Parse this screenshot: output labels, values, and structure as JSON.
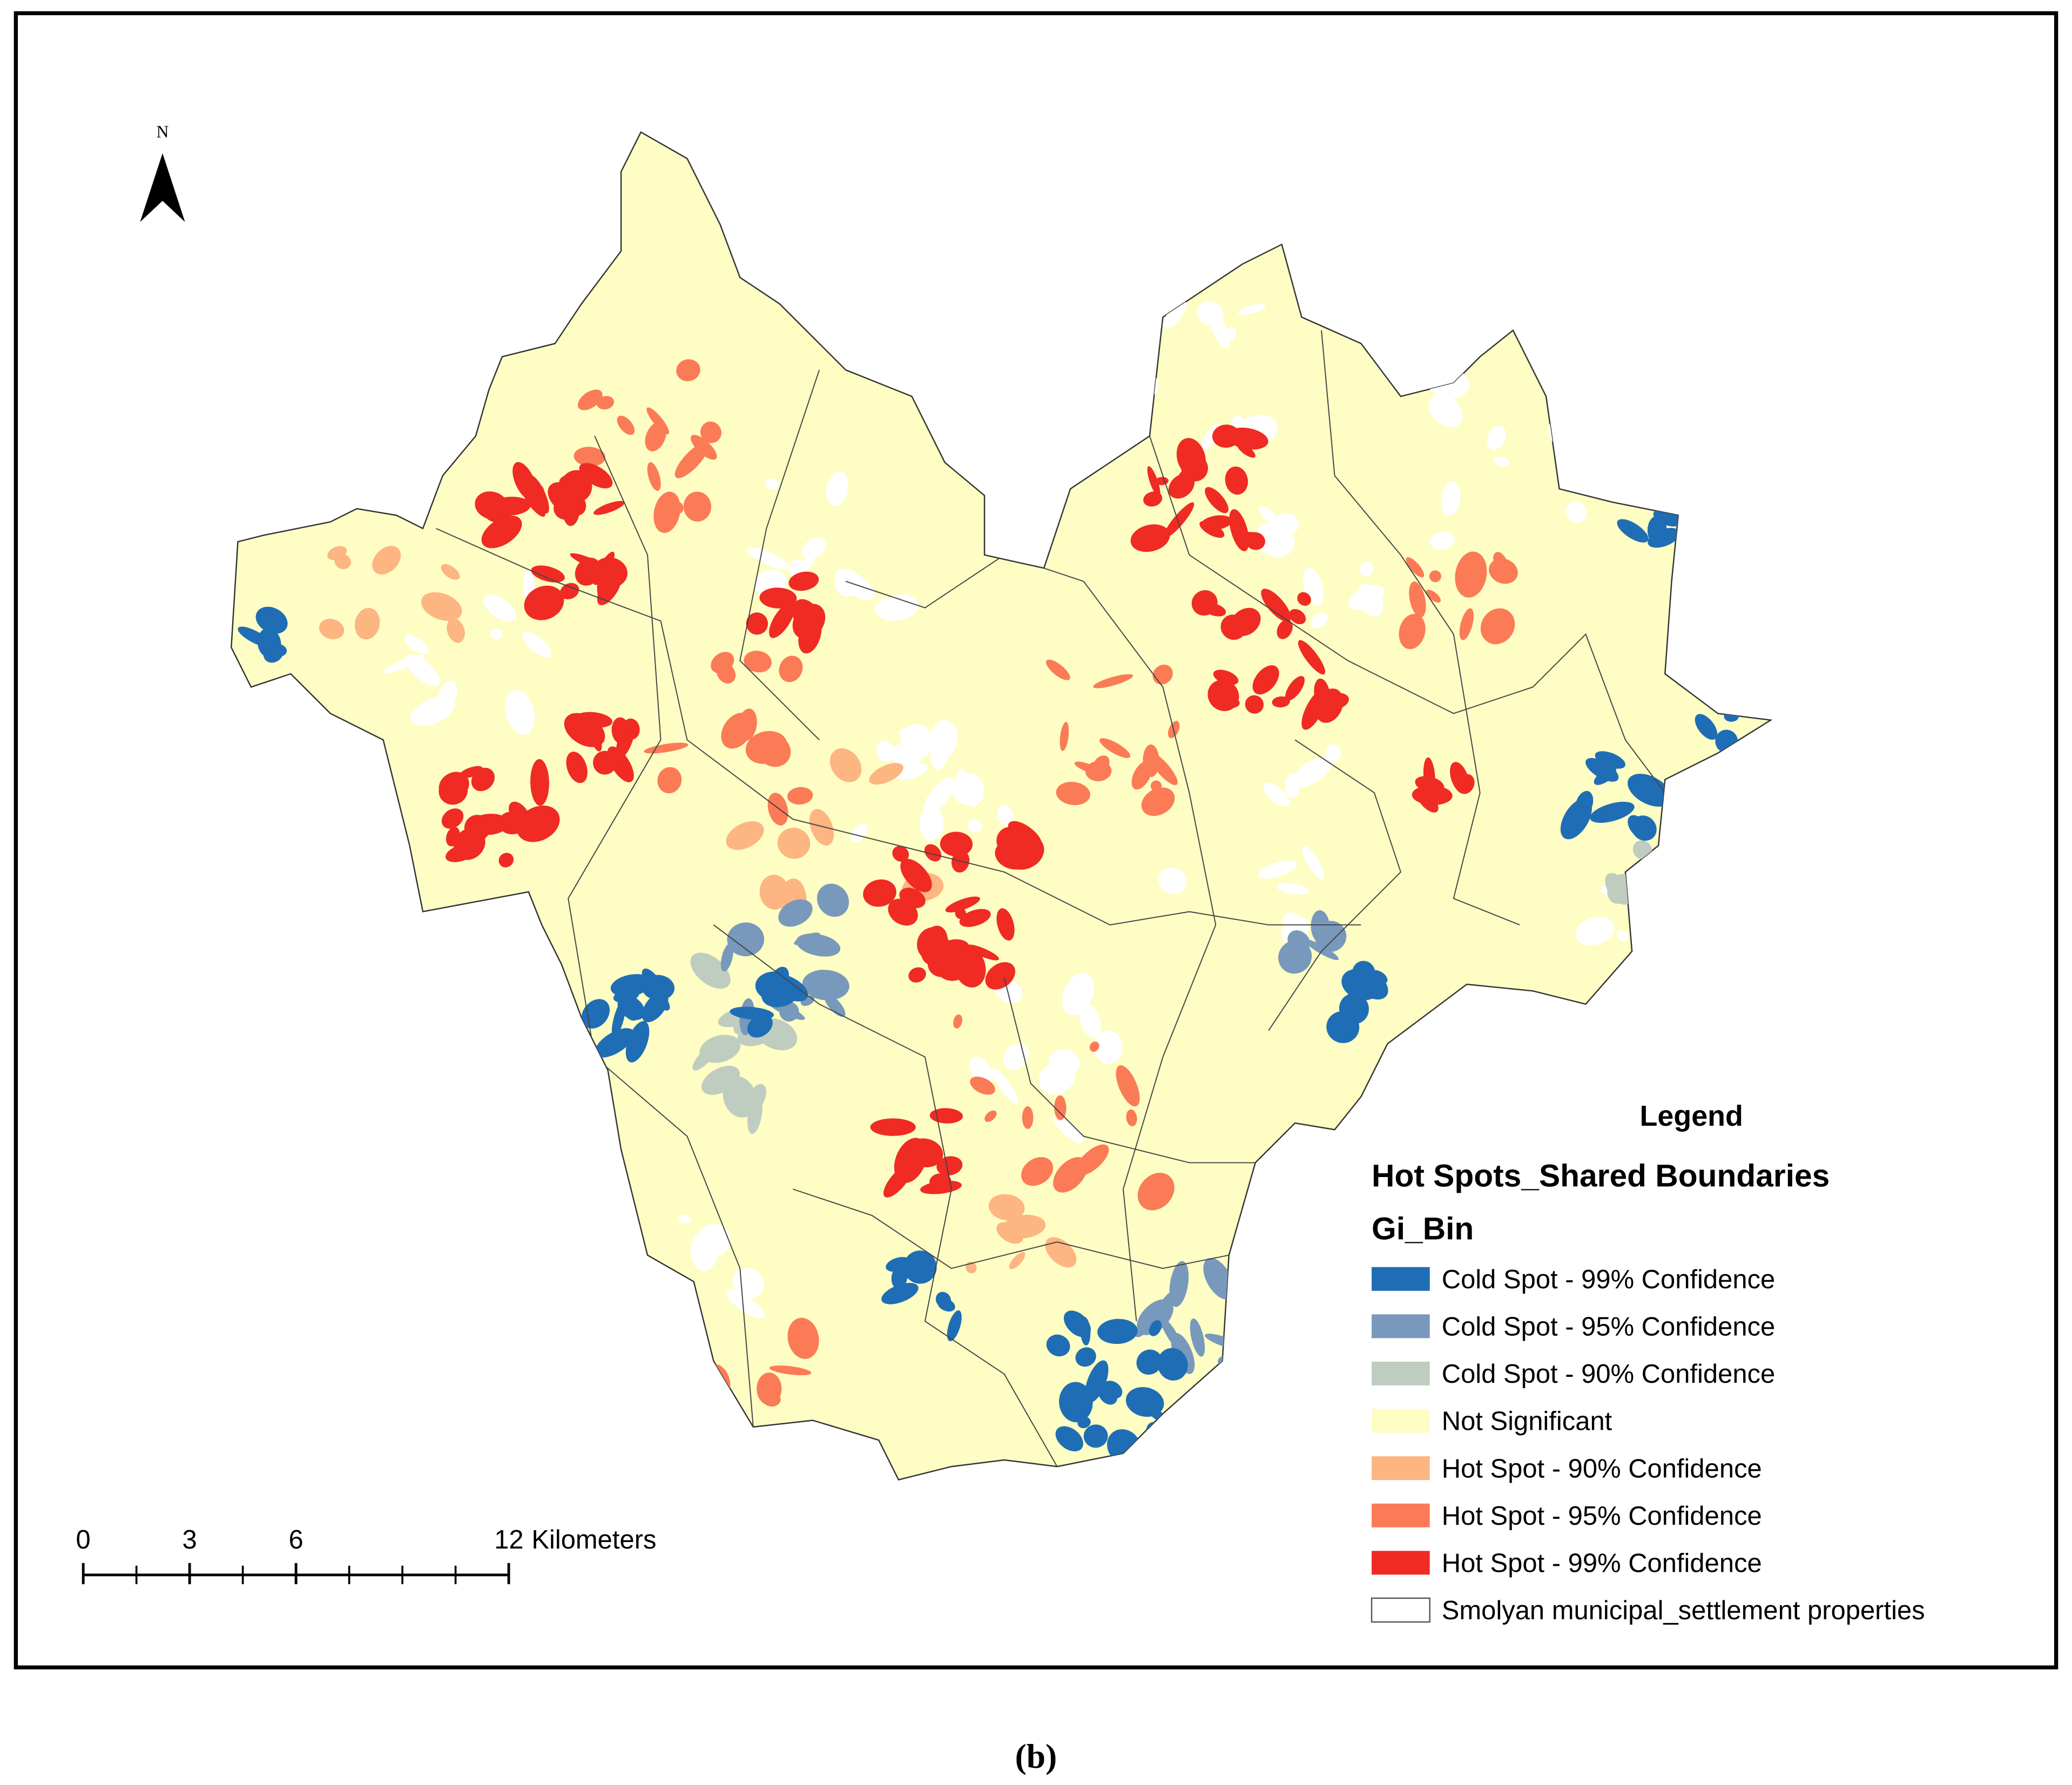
{
  "north_arrow": "N",
  "legend": {
    "title": "Legend",
    "layer": "Hot Spots_Shared Boundaries",
    "field": "Gi_Bin",
    "items": [
      {
        "label": "Cold Spot - 99% Confidence",
        "color": "#1f6eb5"
      },
      {
        "label": "Cold Spot - 95% Confidence",
        "color": "#7899bb"
      },
      {
        "label": "Cold Spot - 90% Confidence",
        "color": "#bfcdc0"
      },
      {
        "label": "Not Significant",
        "color": "#fefdc4"
      },
      {
        "label": "Hot Spot - 90% Confidence",
        "color": "#fdb582"
      },
      {
        "label": "Hot Spot - 95% Confidence",
        "color": "#fb7b56"
      },
      {
        "label": "Hot Spot - 99% Confidence",
        "color": "#ef2b23"
      },
      {
        "label": "Smolyan municipal_settlement properties",
        "color": "#ffffff"
      }
    ]
  },
  "scale_bar": {
    "ticks": [
      0,
      3,
      6,
      12
    ],
    "unit": "Kilometers"
  },
  "caption": "(b)"
}
